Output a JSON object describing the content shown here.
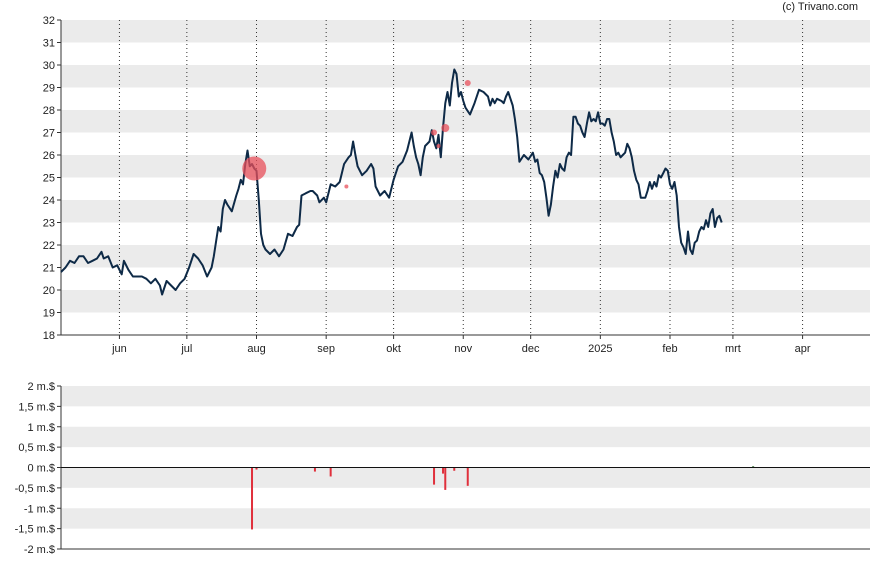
{
  "credit": "(c) Trivano.com",
  "colors": {
    "price_line": "#0e2a47",
    "band": "#ebebeb",
    "event_marker": "#e8505b",
    "bar_negative": "#e0303c",
    "bar_positive": "#2a6e2a"
  },
  "chart_data": [
    {
      "type": "line",
      "title": "",
      "xlabel": "",
      "ylabel": "",
      "ylim": [
        18,
        32
      ],
      "yticks": [
        "18",
        "19",
        "20",
        "21",
        "22",
        "23",
        "24",
        "25",
        "26",
        "27",
        "28",
        "29",
        "30",
        "31",
        "32"
      ],
      "month_ticks": [
        {
          "label": "jun",
          "day": 26
        },
        {
          "label": "jul",
          "day": 56
        },
        {
          "label": "aug",
          "day": 87
        },
        {
          "label": "sep",
          "day": 118
        },
        {
          "label": "okt",
          "day": 148
        },
        {
          "label": "nov",
          "day": 179
        },
        {
          "label": "dec",
          "day": 209
        },
        {
          "label": "2025",
          "day": 240
        },
        {
          "label": "feb",
          "day": 271
        },
        {
          "label": "mrt",
          "day": 299
        },
        {
          "label": "apr",
          "day": 330
        }
      ],
      "x_range": [
        0,
        360
      ],
      "grid": "vertical dotted at month starts, alternating horizontal bands",
      "series": [
        {
          "points": [
            [
              0,
              20.8
            ],
            [
              2,
              21.0
            ],
            [
              4,
              21.3
            ],
            [
              6,
              21.2
            ],
            [
              8,
              21.5
            ],
            [
              10,
              21.5
            ],
            [
              12,
              21.2
            ],
            [
              14,
              21.3
            ],
            [
              16,
              21.4
            ],
            [
              18,
              21.7
            ],
            [
              19,
              21.4
            ],
            [
              21,
              21.5
            ],
            [
              23,
              21.0
            ],
            [
              25,
              21.1
            ],
            [
              27,
              20.7
            ],
            [
              28,
              21.3
            ],
            [
              30,
              20.9
            ],
            [
              32,
              20.6
            ],
            [
              34,
              20.6
            ],
            [
              36,
              20.6
            ],
            [
              38,
              20.5
            ],
            [
              40,
              20.3
            ],
            [
              42,
              20.5
            ],
            [
              44,
              20.2
            ],
            [
              45,
              19.8
            ],
            [
              47,
              20.4
            ],
            [
              49,
              20.2
            ],
            [
              51,
              20.0
            ],
            [
              53,
              20.3
            ],
            [
              55,
              20.5
            ],
            [
              57,
              21.0
            ],
            [
              59,
              21.6
            ],
            [
              61,
              21.4
            ],
            [
              63,
              21.1
            ],
            [
              65,
              20.6
            ],
            [
              67,
              21.0
            ],
            [
              68,
              21.5
            ],
            [
              70,
              22.8
            ],
            [
              71,
              22.6
            ],
            [
              72,
              23.6
            ],
            [
              73,
              24.0
            ],
            [
              74,
              23.8
            ],
            [
              76,
              23.5
            ],
            [
              78,
              24.2
            ],
            [
              79,
              24.5
            ],
            [
              80,
              24.9
            ],
            [
              81,
              24.7
            ],
            [
              82,
              25.6
            ],
            [
              83,
              26.2
            ],
            [
              84,
              25.5
            ],
            [
              85,
              25.6
            ],
            [
              86,
              25.4
            ],
            [
              87,
              25.3
            ],
            [
              88,
              24.0
            ],
            [
              89,
              22.5
            ],
            [
              90,
              22.0
            ],
            [
              91,
              21.8
            ],
            [
              93,
              21.6
            ],
            [
              95,
              21.8
            ],
            [
              97,
              21.5
            ],
            [
              99,
              21.8
            ],
            [
              101,
              22.5
            ],
            [
              103,
              22.4
            ],
            [
              105,
              22.8
            ],
            [
              106,
              22.9
            ],
            [
              107,
              24.2
            ],
            [
              109,
              24.3
            ],
            [
              111,
              24.4
            ],
            [
              112,
              24.4
            ],
            [
              114,
              24.2
            ],
            [
              115,
              23.9
            ],
            [
              117,
              24.1
            ],
            [
              118,
              23.9
            ],
            [
              120,
              24.7
            ],
            [
              122,
              24.6
            ],
            [
              124,
              24.8
            ],
            [
              125,
              25.2
            ],
            [
              126,
              25.6
            ],
            [
              128,
              25.9
            ],
            [
              129,
              26.0
            ],
            [
              130,
              26.6
            ],
            [
              131,
              26.0
            ],
            [
              132,
              25.5
            ],
            [
              134,
              25.1
            ],
            [
              136,
              25.3
            ],
            [
              138,
              25.6
            ],
            [
              139,
              25.4
            ],
            [
              140,
              24.6
            ],
            [
              142,
              24.2
            ],
            [
              144,
              24.4
            ],
            [
              146,
              24.1
            ],
            [
              148,
              24.9
            ],
            [
              150,
              25.5
            ],
            [
              152,
              25.7
            ],
            [
              154,
              26.2
            ],
            [
              156,
              27.0
            ],
            [
              157,
              26.4
            ],
            [
              158,
              25.9
            ],
            [
              159,
              25.6
            ],
            [
              160,
              25.1
            ],
            [
              161,
              25.9
            ],
            [
              162,
              26.4
            ],
            [
              164,
              26.6
            ],
            [
              165,
              27.1
            ],
            [
              166,
              26.6
            ],
            [
              167,
              26.3
            ],
            [
              168,
              26.9
            ],
            [
              169,
              25.9
            ],
            [
              170,
              27.2
            ],
            [
              171,
              28.3
            ],
            [
              172,
              28.8
            ],
            [
              173,
              28.2
            ],
            [
              174,
              29.2
            ],
            [
              175,
              29.8
            ],
            [
              176,
              29.6
            ],
            [
              177,
              28.6
            ],
            [
              178,
              28.8
            ],
            [
              179,
              28.4
            ],
            [
              180,
              28.1
            ],
            [
              182,
              27.8
            ],
            [
              184,
              28.3
            ],
            [
              186,
              28.9
            ],
            [
              188,
              28.8
            ],
            [
              190,
              28.6
            ],
            [
              191,
              28.2
            ],
            [
              192,
              28.5
            ],
            [
              193,
              28.3
            ],
            [
              194,
              28.5
            ],
            [
              196,
              28.4
            ],
            [
              197,
              28.3
            ],
            [
              198,
              28.6
            ],
            [
              199,
              28.8
            ],
            [
              201,
              28.2
            ],
            [
              202,
              27.6
            ],
            [
              203,
              26.8
            ],
            [
              204,
              25.7
            ],
            [
              206,
              26.0
            ],
            [
              208,
              25.8
            ],
            [
              210,
              26.1
            ],
            [
              211,
              25.7
            ],
            [
              212,
              25.8
            ],
            [
              213,
              25.2
            ],
            [
              214,
              25.1
            ],
            [
              215,
              24.8
            ],
            [
              216,
              24.1
            ],
            [
              217,
              23.3
            ],
            [
              218,
              23.8
            ],
            [
              219,
              24.6
            ],
            [
              220,
              25.3
            ],
            [
              221,
              25.0
            ],
            [
              222,
              25.6
            ],
            [
              223,
              25.4
            ],
            [
              224,
              25.3
            ],
            [
              225,
              25.9
            ],
            [
              226,
              26.1
            ],
            [
              227,
              26.0
            ],
            [
              228,
              27.7
            ],
            [
              229,
              27.7
            ],
            [
              230,
              27.4
            ],
            [
              231,
              27.3
            ],
            [
              232,
              27.0
            ],
            [
              233,
              26.8
            ],
            [
              234,
              27.4
            ],
            [
              235,
              27.9
            ],
            [
              236,
              27.5
            ],
            [
              237,
              27.6
            ],
            [
              238,
              27.5
            ],
            [
              239,
              27.9
            ],
            [
              240,
              27.4
            ],
            [
              241,
              27.4
            ],
            [
              242,
              27.3
            ],
            [
              243,
              27.6
            ],
            [
              244,
              27.6
            ],
            [
              245,
              27.0
            ],
            [
              246,
              26.6
            ],
            [
              247,
              26.0
            ],
            [
              248,
              26.1
            ],
            [
              249,
              25.9
            ],
            [
              250,
              26.0
            ],
            [
              251,
              26.1
            ],
            [
              252,
              26.5
            ],
            [
              253,
              26.3
            ],
            [
              254,
              25.9
            ],
            [
              255,
              25.3
            ],
            [
              256,
              24.9
            ],
            [
              257,
              24.7
            ],
            [
              258,
              24.1
            ],
            [
              259,
              24.1
            ],
            [
              260,
              24.1
            ],
            [
              261,
              24.4
            ],
            [
              262,
              24.8
            ],
            [
              263,
              24.5
            ],
            [
              264,
              24.8
            ],
            [
              265,
              24.6
            ],
            [
              266,
              25.1
            ],
            [
              267,
              25.0
            ],
            [
              268,
              25.2
            ],
            [
              269,
              25.4
            ],
            [
              270,
              25.3
            ],
            [
              271,
              24.7
            ],
            [
              272,
              24.5
            ],
            [
              273,
              24.8
            ],
            [
              274,
              24.2
            ],
            [
              275,
              22.8
            ],
            [
              276,
              22.1
            ],
            [
              277,
              21.9
            ],
            [
              278,
              21.6
            ],
            [
              279,
              22.6
            ],
            [
              280,
              21.8
            ],
            [
              281,
              21.6
            ],
            [
              282,
              22.1
            ],
            [
              283,
              22.2
            ],
            [
              284,
              22.6
            ],
            [
              285,
              22.8
            ],
            [
              286,
              22.7
            ],
            [
              287,
              23.1
            ],
            [
              288,
              22.8
            ],
            [
              289,
              23.4
            ],
            [
              290,
              23.6
            ],
            [
              291,
              22.8
            ],
            [
              292,
              23.2
            ],
            [
              293,
              23.3
            ],
            [
              294,
              23.0
            ]
          ]
        }
      ],
      "events": [
        {
          "day": 86,
          "value": 25.4,
          "size": 12
        },
        {
          "day": 127,
          "value": 24.6,
          "size": 2
        },
        {
          "day": 166,
          "value": 27.0,
          "size": 3
        },
        {
          "day": 168,
          "value": 26.4,
          "size": 2
        },
        {
          "day": 171,
          "value": 27.2,
          "size": 4
        },
        {
          "day": 181,
          "value": 29.2,
          "size": 3
        }
      ]
    },
    {
      "type": "bar",
      "title": "",
      "xlabel": "",
      "ylabel": "",
      "ylim": [
        -2,
        2
      ],
      "yticks": [
        "-2 m.$",
        "-1,5 m.$",
        "-1 m.$",
        "-0,5 m.$",
        "0 m.$",
        "0,5 m.$",
        "1 m.$",
        "1,5 m.$",
        "2 m.$"
      ],
      "ytick_values": [
        -2,
        -1.5,
        -1,
        -0.5,
        0,
        0.5,
        1,
        1.5,
        2
      ],
      "bars": [
        {
          "day": 85,
          "value": -1.52
        },
        {
          "day": 87,
          "value": -0.05
        },
        {
          "day": 113,
          "value": -0.1
        },
        {
          "day": 120,
          "value": -0.22
        },
        {
          "day": 166,
          "value": -0.42
        },
        {
          "day": 170,
          "value": -0.15
        },
        {
          "day": 171,
          "value": -0.55
        },
        {
          "day": 175,
          "value": -0.08
        },
        {
          "day": 181,
          "value": -0.45
        },
        {
          "day": 308,
          "value": 0.03
        }
      ]
    }
  ]
}
